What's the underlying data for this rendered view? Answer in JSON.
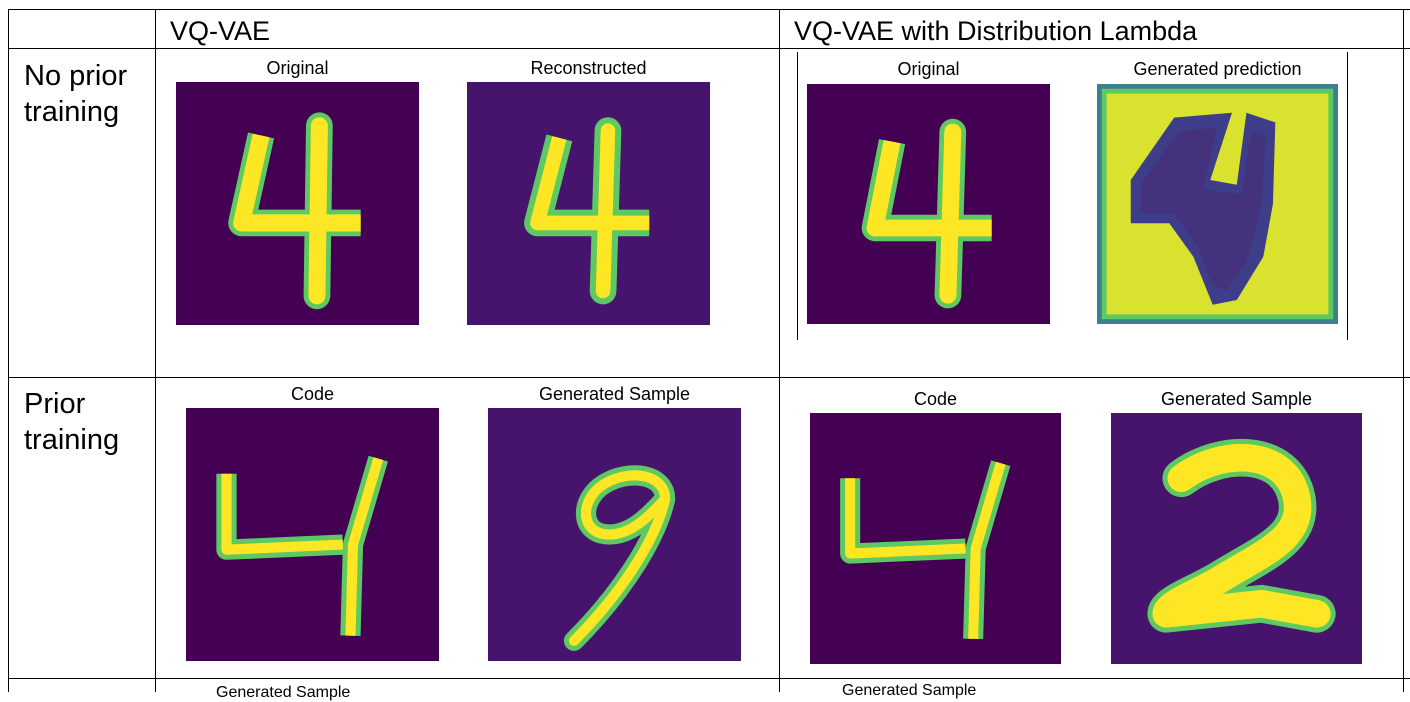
{
  "table": {
    "headers": [
      "VQ-VAE",
      "VQ-VAE with Distribution Lambda"
    ],
    "rows": [
      {
        "label": "No prior training",
        "left": {
          "captions": [
            "Original",
            "Reconstructed"
          ]
        },
        "right": {
          "captions": [
            "Original",
            "Generated prediction"
          ]
        }
      },
      {
        "label": "Prior training",
        "left": {
          "captions": [
            "Code",
            "Generated Sample"
          ]
        },
        "right": {
          "captions": [
            "Code",
            "Generated Sample"
          ]
        }
      }
    ],
    "next_row_partial": {
      "left_caption": "Generated Sample",
      "right_caption": "Generated Sample"
    }
  },
  "colors": {
    "plot_background": "#440154",
    "digit_core": "#fde725",
    "digit_edge": "#5ec962",
    "noise": "#482878",
    "border": "#000000"
  }
}
